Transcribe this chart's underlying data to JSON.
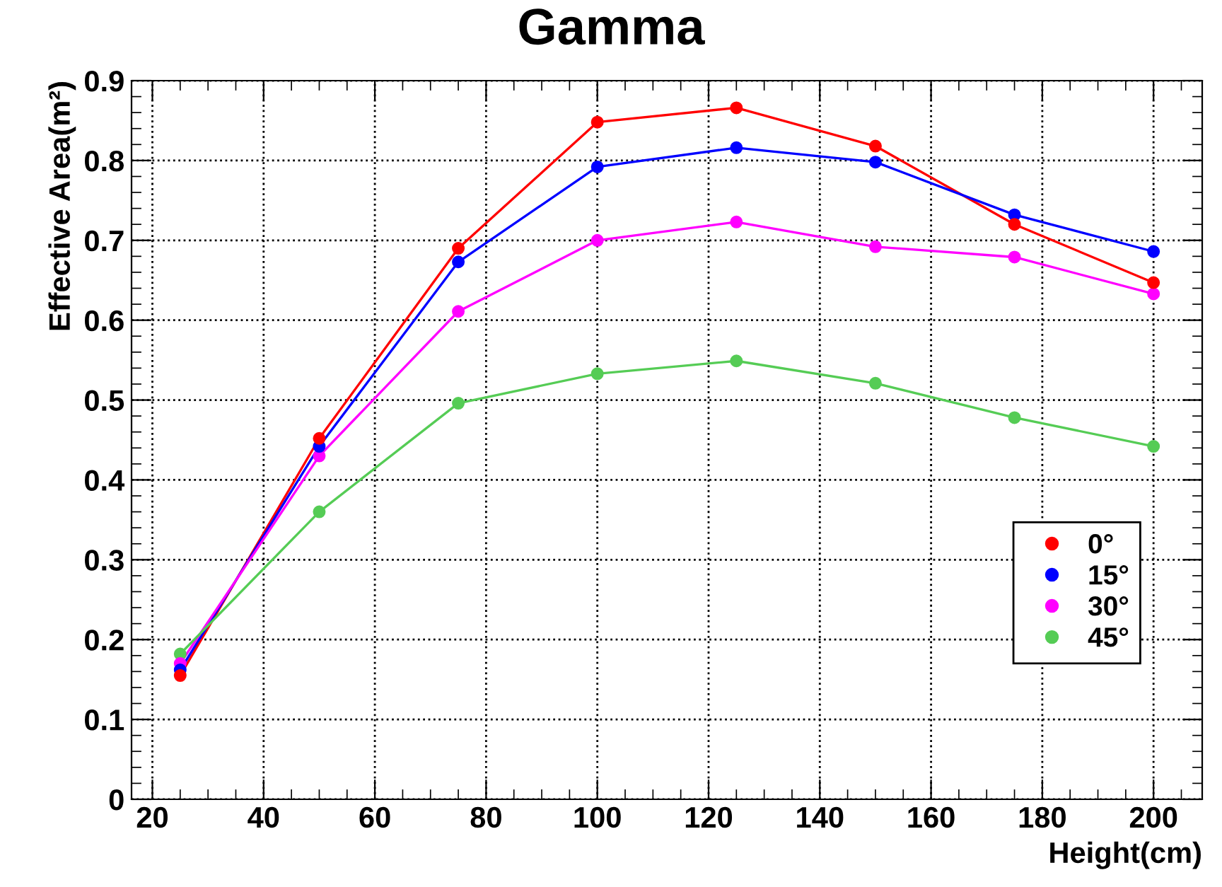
{
  "chart_data": {
    "type": "line",
    "title": "Gamma",
    "xlabel": "Height(cm)",
    "ylabel": "Effective Area(m²)",
    "x": [
      25,
      50,
      75,
      100,
      125,
      150,
      175,
      200
    ],
    "series": [
      {
        "name": "0°",
        "color": "#ff0000",
        "values": [
          0.155,
          0.452,
          0.69,
          0.848,
          0.866,
          0.818,
          0.72,
          0.647
        ]
      },
      {
        "name": "15°",
        "color": "#0000ff",
        "values": [
          0.162,
          0.442,
          0.673,
          0.792,
          0.816,
          0.798,
          0.732,
          0.686
        ]
      },
      {
        "name": "30°",
        "color": "#ff00ff",
        "values": [
          0.17,
          0.43,
          0.611,
          0.7,
          0.723,
          0.692,
          0.679,
          0.633
        ]
      },
      {
        "name": "45°",
        "color": "#55cc55",
        "values": [
          0.182,
          0.36,
          0.496,
          0.533,
          0.549,
          0.521,
          0.478,
          0.442
        ]
      }
    ],
    "xlim": [
      16.25,
      208.75
    ],
    "xticks": [
      20,
      40,
      60,
      80,
      100,
      120,
      140,
      160,
      180,
      200
    ],
    "ylim": [
      0,
      0.9
    ],
    "yticks": [
      0,
      0.1,
      0.2,
      0.3,
      0.4,
      0.5,
      0.6,
      0.7,
      0.8,
      0.9
    ],
    "grid": true,
    "legend": "bottom right",
    "marker": "circle",
    "line_style": "solid"
  }
}
